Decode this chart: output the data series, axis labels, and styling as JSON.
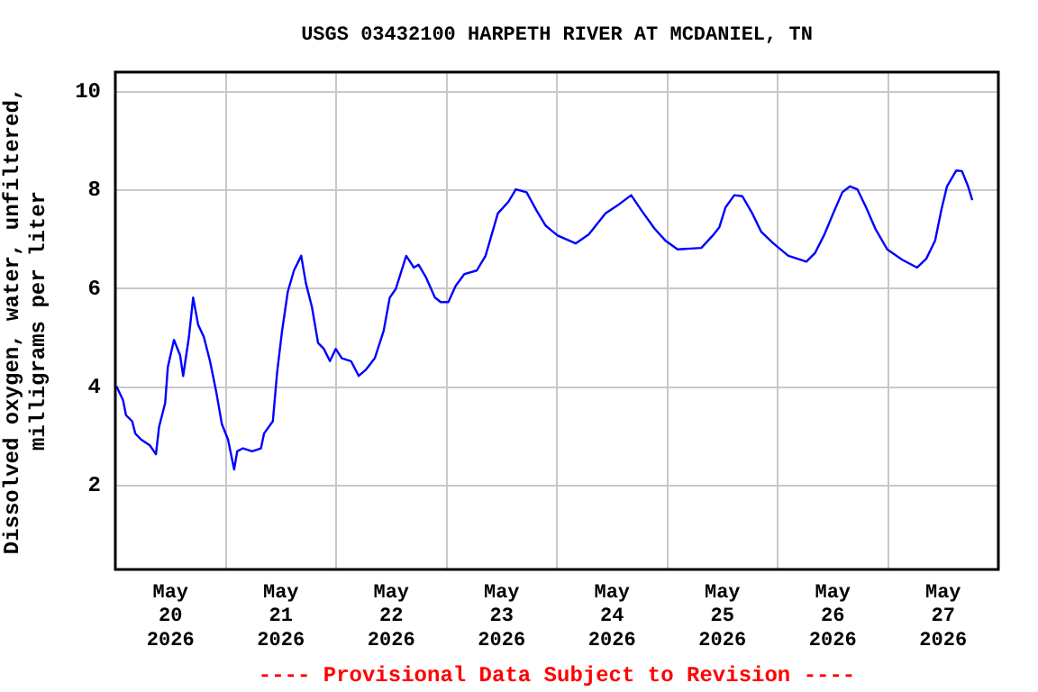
{
  "chart_data": {
    "type": "line",
    "title": "USGS 03432100 HARPETH RIVER AT MCDANIEL, TN",
    "ylabel": "Dissolved oxygen, water, unfiltered, milligrams per liter",
    "annotations": [
      "---- Provisional Data Subject to Revision ----"
    ],
    "x": [
      "2026-05-20T00:15",
      "2026-05-20T01:40",
      "2026-05-20T02:20",
      "2026-05-20T03:40",
      "2026-05-20T04:20",
      "2026-05-20T05:35",
      "2026-05-20T07:30",
      "2026-05-20T08:50",
      "2026-05-20T09:30",
      "2026-05-20T10:50",
      "2026-05-20T11:25",
      "2026-05-20T12:45",
      "2026-05-20T14:05",
      "2026-05-20T14:45",
      "2026-05-20T16:00",
      "2026-05-20T16:55",
      "2026-05-20T18:00",
      "2026-05-20T19:15",
      "2026-05-20T20:35",
      "2026-05-20T21:55",
      "2026-05-20T23:10",
      "2026-05-21T00:30",
      "2026-05-21T01:50",
      "2026-05-21T02:30",
      "2026-05-21T03:45",
      "2026-05-21T05:45",
      "2026-05-21T07:40",
      "2026-05-21T08:20",
      "2026-05-21T10:15",
      "2026-05-21T11:10",
      "2026-05-21T12:15",
      "2026-05-21T13:30",
      "2026-05-21T14:50",
      "2026-05-21T16:25",
      "2026-05-21T17:25",
      "2026-05-21T18:45",
      "2026-05-21T20:05",
      "2026-05-21T21:20",
      "2026-05-21T22:40",
      "2026-05-21T23:55",
      "2026-05-22T01:15",
      "2026-05-22T03:15",
      "2026-05-22T04:55",
      "2026-05-22T06:25",
      "2026-05-22T08:25",
      "2026-05-22T10:20",
      "2026-05-22T11:40",
      "2026-05-22T13:00",
      "2026-05-22T15:15",
      "2026-05-22T16:55",
      "2026-05-22T17:55",
      "2026-05-22T19:30",
      "2026-05-22T21:30",
      "2026-05-22T22:45",
      "2026-05-23T00:25",
      "2026-05-23T02:00",
      "2026-05-23T03:55",
      "2026-05-23T06:35",
      "2026-05-23T08:30",
      "2026-05-23T09:50",
      "2026-05-23T11:10",
      "2026-05-23T13:30",
      "2026-05-23T15:05",
      "2026-05-23T17:25",
      "2026-05-23T19:35",
      "2026-05-23T21:35",
      "2026-05-24T00:10",
      "2026-05-24T04:05",
      "2026-05-24T06:55",
      "2026-05-24T10:35",
      "2026-05-24T13:10",
      "2026-05-24T16:10",
      "2026-05-24T18:25",
      "2026-05-24T21:15",
      "2026-05-24T23:35",
      "2026-05-25T02:15",
      "2026-05-25T07:25",
      "2026-05-25T10:05",
      "2026-05-25T11:20",
      "2026-05-25T12:40",
      "2026-05-25T14:35",
      "2026-05-25T16:20",
      "2026-05-25T18:30",
      "2026-05-25T20:25",
      "2026-05-25T23:05",
      "2026-05-26T02:20",
      "2026-05-26T06:15",
      "2026-05-26T08:10",
      "2026-05-26T10:10",
      "2026-05-26T12:05",
      "2026-05-26T14:05",
      "2026-05-26T15:45",
      "2026-05-26T17:20",
      "2026-05-26T19:15",
      "2026-05-26T21:15",
      "2026-05-26T23:50",
      "2026-05-27T03:05",
      "2026-05-27T06:20",
      "2026-05-27T08:20",
      "2026-05-27T10:15",
      "2026-05-27T11:35",
      "2026-05-27T12:50",
      "2026-05-27T14:50",
      "2026-05-27T16:05",
      "2026-05-27T17:25",
      "2026-05-27T18:20"
    ],
    "series": [
      {
        "color": "#0000ff",
        "values": [
          4.02,
          3.74,
          3.43,
          3.31,
          3.06,
          2.94,
          2.82,
          2.64,
          3.19,
          3.68,
          4.41,
          4.96,
          4.65,
          4.23,
          5.02,
          5.82,
          5.27,
          5.02,
          4.53,
          3.92,
          3.25,
          2.94,
          2.33,
          2.7,
          2.76,
          2.7,
          2.76,
          3.06,
          3.31,
          4.29,
          5.14,
          5.94,
          6.37,
          6.67,
          6.12,
          5.63,
          4.9,
          4.78,
          4.53,
          4.78,
          4.59,
          4.53,
          4.23,
          4.35,
          4.59,
          5.14,
          5.82,
          6.0,
          6.67,
          6.43,
          6.49,
          6.24,
          5.82,
          5.73,
          5.73,
          6.06,
          6.3,
          6.37,
          6.67,
          7.1,
          7.53,
          7.77,
          8.02,
          7.96,
          7.59,
          7.28,
          7.08,
          6.92,
          7.1,
          7.53,
          7.69,
          7.9,
          7.59,
          7.22,
          6.98,
          6.8,
          6.83,
          7.1,
          7.25,
          7.65,
          7.9,
          7.88,
          7.53,
          7.16,
          6.92,
          6.67,
          6.55,
          6.73,
          7.1,
          7.53,
          7.96,
          8.08,
          8.02,
          7.65,
          7.22,
          6.8,
          6.59,
          6.43,
          6.61,
          6.98,
          7.59,
          8.08,
          8.4,
          8.39,
          8.08,
          7.8
        ]
      }
    ],
    "xlim": [
      "2026-05-20T00:00",
      "2026-05-28T00:00"
    ],
    "xticks": [
      {
        "value": "2026-05-20T00:00",
        "label": null
      },
      {
        "value": "2026-05-20T12:00",
        "label": "May 20 2026"
      },
      {
        "value": "2026-05-21T00:00",
        "label": null
      },
      {
        "value": "2026-05-21T12:00",
        "label": "May 21 2026"
      },
      {
        "value": "2026-05-22T00:00",
        "label": null
      },
      {
        "value": "2026-05-22T12:00",
        "label": "May 22 2026"
      },
      {
        "value": "2026-05-23T00:00",
        "label": null
      },
      {
        "value": "2026-05-23T12:00",
        "label": "May 23 2026"
      },
      {
        "value": "2026-05-24T00:00",
        "label": null
      },
      {
        "value": "2026-05-24T12:00",
        "label": "May 24 2026"
      },
      {
        "value": "2026-05-25T00:00",
        "label": null
      },
      {
        "value": "2026-05-25T12:00",
        "label": "May 25 2026"
      },
      {
        "value": "2026-05-26T00:00",
        "label": null
      },
      {
        "value": "2026-05-26T12:00",
        "label": "May 26 2026"
      },
      {
        "value": "2026-05-27T00:00",
        "label": null
      },
      {
        "value": "2026-05-27T12:00",
        "label": "May 27 2026"
      },
      {
        "value": "2026-05-28T00:00",
        "label": null
      }
    ],
    "ylim": [
      0.3,
      10.4
    ],
    "yticks": [
      2,
      4,
      6,
      8,
      10
    ],
    "grid": true,
    "marker": "none",
    "line_style": "solid"
  }
}
